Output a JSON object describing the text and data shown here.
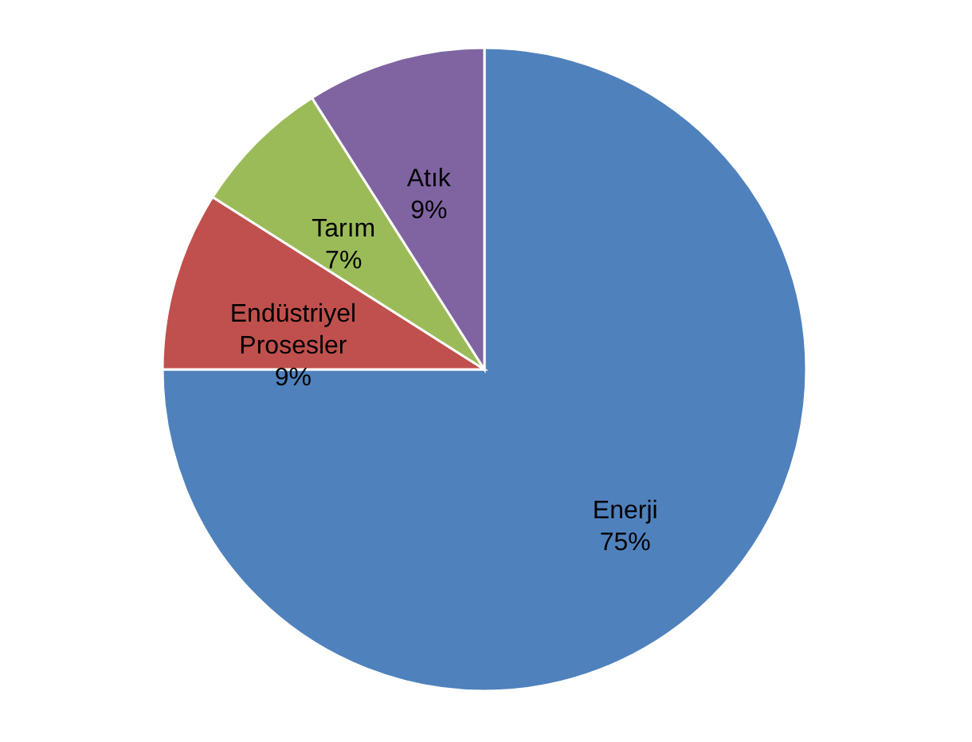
{
  "chart_data": {
    "type": "pie",
    "categories": [
      "Enerji",
      "Endüstriyel Prosesler",
      "Tarım",
      "Atık"
    ],
    "values": [
      75,
      9,
      7,
      9
    ],
    "colors": [
      "#4f81bd",
      "#c0504d",
      "#9bbb59",
      "#8064a2"
    ],
    "value_labels": [
      "75%",
      "9%",
      "7%",
      "9%"
    ],
    "legend": false
  }
}
